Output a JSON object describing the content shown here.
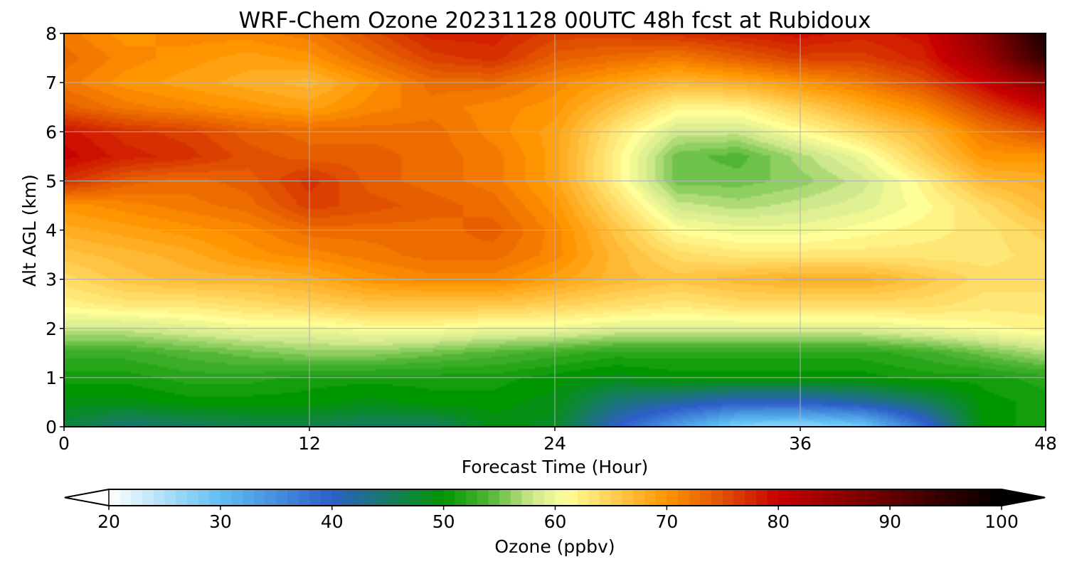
{
  "chart_data": {
    "type": "heatmap",
    "title": "WRF-Chem Ozone  20231128 00UTC 48h fcst at Rubidoux",
    "xlabel": "Forecast Time (Hour)",
    "ylabel": "Alt AGL (km)",
    "xlim": [
      0,
      48
    ],
    "ylim": [
      0,
      8
    ],
    "x_ticks": [
      "0",
      "12",
      "24",
      "36",
      "48"
    ],
    "y_ticks": [
      "0",
      "1",
      "2",
      "3",
      "4",
      "5",
      "6",
      "7",
      "8"
    ],
    "grid": true,
    "x_hours": [
      0,
      3,
      6,
      9,
      12,
      15,
      18,
      21,
      24,
      27,
      30,
      33,
      36,
      39,
      42,
      45,
      48
    ],
    "z_km": [
      0,
      0.5,
      1,
      1.5,
      2,
      2.5,
      3,
      3.5,
      4,
      4.5,
      5,
      5.5,
      6,
      6.5,
      7,
      7.5,
      8
    ],
    "values": [
      [
        47,
        44,
        45,
        46,
        46,
        45,
        45,
        49,
        48,
        40,
        33,
        27,
        26,
        28,
        38,
        50,
        51
      ],
      [
        49,
        49,
        50,
        50,
        50,
        49,
        50,
        50,
        49,
        44,
        42,
        40,
        40,
        42,
        45,
        50,
        51
      ],
      [
        51,
        51,
        52,
        52,
        51,
        51,
        51,
        51,
        50,
        49,
        50,
        50,
        50,
        50,
        51,
        51,
        52
      ],
      [
        53,
        53,
        54,
        55,
        56,
        56,
        55,
        54,
        53,
        52,
        52,
        52,
        52,
        52,
        53,
        55,
        57
      ],
      [
        58,
        58,
        59,
        60,
        60,
        61,
        61,
        60,
        60,
        59,
        59,
        59,
        59,
        59,
        60,
        61,
        62
      ],
      [
        62,
        63,
        63,
        64,
        65,
        66,
        66,
        66,
        65,
        64,
        63,
        64,
        64,
        64,
        64,
        63,
        63
      ],
      [
        64,
        66,
        67,
        67,
        68,
        70,
        71,
        71,
        69,
        67,
        66,
        67,
        68,
        68,
        66,
        64,
        64
      ],
      [
        66,
        67,
        68,
        70,
        71,
        72,
        73,
        73,
        71,
        67,
        64,
        63,
        63,
        63,
        63,
        63,
        64
      ],
      [
        68,
        69,
        70,
        71,
        73,
        73,
        73,
        74,
        71,
        66,
        61,
        60,
        60,
        61,
        62,
        63,
        65
      ],
      [
        70,
        71,
        72,
        73,
        76,
        75,
        74,
        73,
        70,
        64,
        58,
        57,
        58,
        59,
        61,
        64,
        67
      ],
      [
        77,
        74,
        73,
        74,
        77,
        74,
        73,
        72,
        69,
        62,
        55,
        55,
        56,
        58,
        62,
        67,
        68
      ],
      [
        80,
        78,
        77,
        75,
        74,
        74,
        73,
        72,
        69,
        62,
        55,
        54,
        57,
        60,
        65,
        70,
        70
      ],
      [
        79,
        77,
        76,
        74,
        73,
        73,
        73,
        71,
        69,
        63,
        58,
        58,
        61,
        64,
        67,
        72,
        75
      ],
      [
        74,
        72,
        71,
        70,
        69,
        71,
        72,
        71,
        70,
        66,
        62,
        62,
        65,
        68,
        71,
        76,
        80
      ],
      [
        72,
        70,
        69,
        68,
        67,
        70,
        73,
        73,
        71,
        69,
        67,
        68,
        70,
        72,
        75,
        80,
        86
      ],
      [
        73,
        71,
        70,
        69,
        70,
        73,
        76,
        77,
        74,
        73,
        72,
        74,
        76,
        76,
        78,
        84,
        95
      ],
      [
        72,
        70,
        71,
        71,
        72,
        75,
        78,
        78,
        76,
        76,
        77,
        78,
        79,
        78,
        79,
        86,
        98
      ]
    ],
    "colorbar": {
      "label": "Ozone  (ppbv)",
      "ticks": [
        "20",
        "30",
        "40",
        "50",
        "60",
        "70",
        "80",
        "90",
        "100"
      ],
      "min": 20,
      "max": 100,
      "extend": "both"
    },
    "colors": {
      "low": "#ffffff",
      "light_blue": "#5fbff2",
      "blue": "#2d5ec9",
      "dark_green": "#009600",
      "green": "#4fb533",
      "light_green": "#cfe88e",
      "pale_yellow": "#ffff99",
      "orange": "#ff9500",
      "red_orange": "#e05000",
      "red": "#c80000",
      "dark_red": "#640000",
      "black": "#000000"
    }
  }
}
